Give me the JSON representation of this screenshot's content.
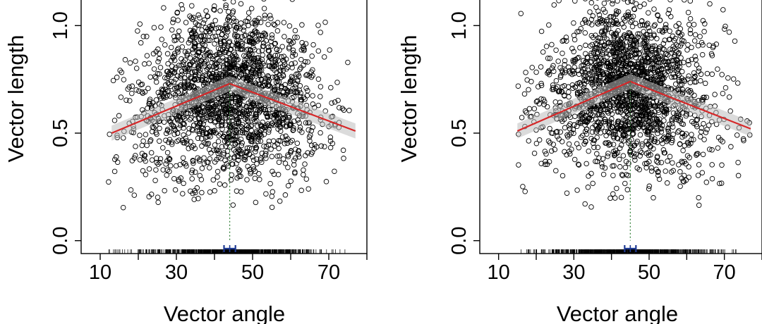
{
  "chart_data": [
    {
      "type": "scatter",
      "panel": "left",
      "xlabel": "Vector angle",
      "ylabel": "Vector length",
      "xlim": [
        5,
        80
      ],
      "ylim": [
        -0.06,
        1.25
      ],
      "x_ticks": [
        10,
        30,
        50,
        70
      ],
      "x_minor_ticks": [
        20,
        40,
        60,
        80
      ],
      "y_ticks": [
        0.0,
        0.5,
        1.0
      ],
      "y_tick_labels": [
        "0.0",
        "0.5",
        "1.0"
      ],
      "point_cloud": {
        "n_points": 2000,
        "x_center": 44,
        "x_sd": 12,
        "x_range": [
          12,
          77
        ],
        "y_center": 0.7,
        "y_sd": 0.2,
        "y_range": [
          0.15,
          1.25
        ],
        "marker": "open-circle"
      },
      "fit_line": {
        "color": "#d62728",
        "breakpoint_x": 44,
        "points": [
          [
            13,
            0.5
          ],
          [
            44,
            0.73
          ],
          [
            77,
            0.51
          ]
        ]
      },
      "breakpoint": {
        "x": 44,
        "ci": [
          42.5,
          45.5
        ],
        "color": "#1f3a93"
      },
      "rug": true
    },
    {
      "type": "scatter",
      "panel": "right",
      "xlabel": "Vector angle",
      "ylabel": "Vector length",
      "xlim": [
        5,
        80
      ],
      "ylim": [
        -0.06,
        1.25
      ],
      "x_ticks": [
        10,
        30,
        50,
        70
      ],
      "x_minor_ticks": [
        20,
        40,
        60,
        80
      ],
      "y_ticks": [
        0.0,
        0.5,
        1.0
      ],
      "y_tick_labels": [
        "0.0",
        "0.5",
        "1.0"
      ],
      "point_cloud": {
        "n_points": 2000,
        "x_center": 45,
        "x_sd": 11,
        "x_range": [
          15,
          77
        ],
        "y_center": 0.72,
        "y_sd": 0.2,
        "y_range": [
          0.15,
          1.25
        ],
        "marker": "open-circle"
      },
      "fit_line": {
        "color": "#d62728",
        "breakpoint_x": 45,
        "points": [
          [
            15,
            0.51
          ],
          [
            45,
            0.74
          ],
          [
            77,
            0.52
          ]
        ]
      },
      "breakpoint": {
        "x": 45,
        "ci": [
          43.5,
          46.5
        ],
        "color": "#1f3a93"
      },
      "rug": true
    }
  ]
}
